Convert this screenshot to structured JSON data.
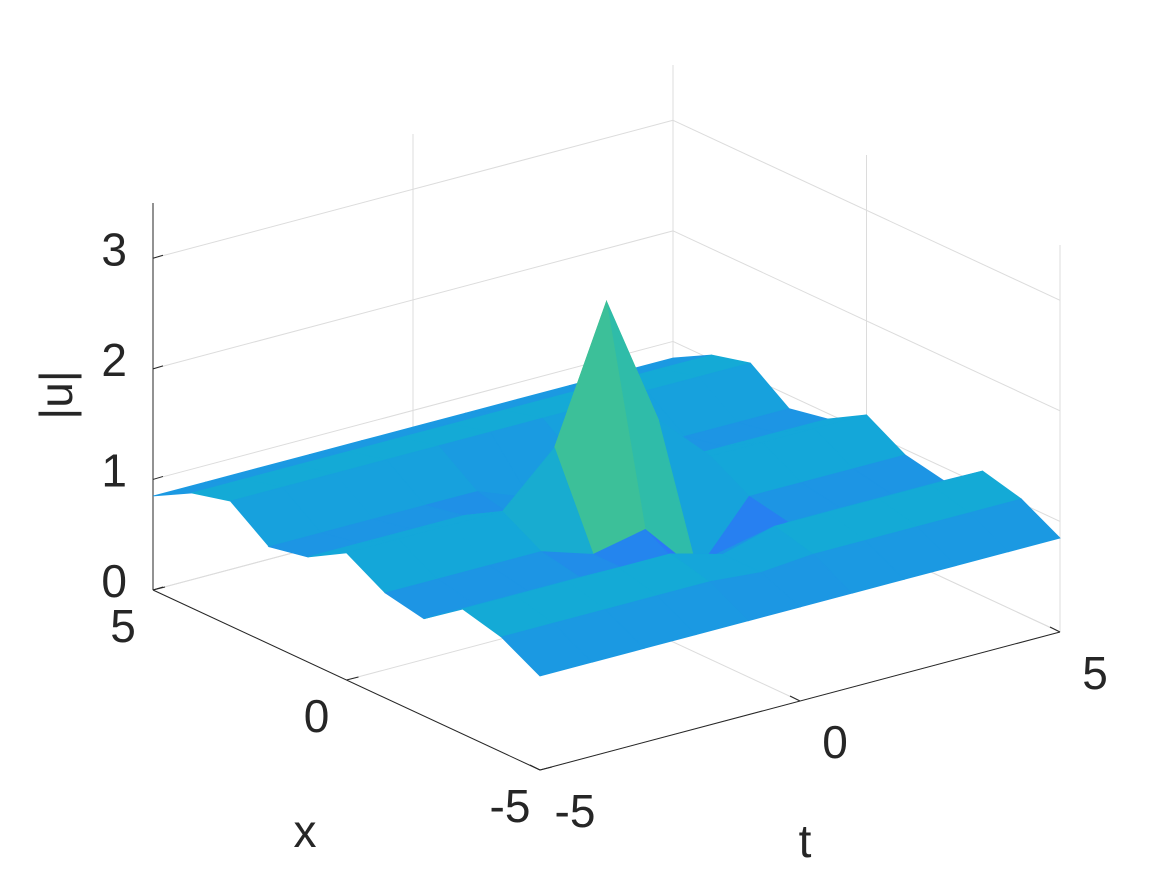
{
  "chart_data": {
    "type": "surface3d",
    "xlabel": "t",
    "ylabel": "x",
    "zlabel": "|u|",
    "t": [
      -5,
      -4,
      -3,
      -2,
      -1,
      0,
      1,
      2,
      3,
      4,
      5
    ],
    "x": [
      -5,
      -4,
      -3,
      -2,
      -1,
      0,
      1,
      2,
      3,
      4,
      5
    ],
    "z": [
      [
        0.85,
        0.85,
        0.85,
        0.85,
        0.85,
        0.85,
        0.85,
        0.85,
        0.85,
        0.85,
        0.85
      ],
      [
        1.04,
        1.04,
        1.04,
        1.04,
        1.04,
        1.0,
        1.04,
        1.04,
        1.04,
        1.04,
        1.04
      ],
      [
        1.13,
        1.13,
        1.13,
        1.13,
        1.13,
        1.0,
        1.13,
        1.13,
        1.13,
        1.13,
        1.13
      ],
      [
        0.88,
        0.88,
        0.88,
        0.88,
        0.8,
        0.7,
        0.8,
        0.88,
        0.88,
        0.88,
        0.88
      ],
      [
        0.95,
        0.95,
        0.95,
        0.95,
        0.8,
        0.9,
        0.4,
        0.95,
        0.95,
        0.95,
        0.95
      ],
      [
        1.15,
        1.15,
        1.15,
        1.15,
        1.6,
        2.8,
        1.6,
        1.15,
        1.15,
        1.15,
        1.15
      ],
      [
        0.95,
        0.95,
        0.95,
        0.95,
        0.8,
        1.3,
        0.8,
        0.95,
        0.95,
        0.95,
        0.95
      ],
      [
        0.88,
        0.88,
        0.88,
        0.88,
        0.88,
        0.7,
        0.88,
        0.88,
        0.88,
        0.88,
        0.88
      ],
      [
        1.13,
        1.13,
        1.13,
        1.13,
        1.13,
        1.13,
        1.13,
        1.13,
        1.13,
        1.13,
        1.13
      ],
      [
        1.04,
        1.04,
        1.04,
        1.04,
        1.04,
        1.04,
        1.04,
        1.04,
        1.04,
        1.04,
        1.04
      ],
      [
        0.85,
        0.85,
        0.85,
        0.85,
        0.85,
        0.85,
        0.85,
        0.85,
        0.85,
        0.85,
        0.85
      ]
    ],
    "tlim": [
      -5,
      5
    ],
    "xlim": [
      -5,
      5
    ],
    "zlim": [
      0,
      3.5
    ],
    "tticks": [
      -5,
      0,
      5
    ],
    "xticks": [
      -5,
      0,
      5
    ],
    "zticks": [
      0,
      1,
      2,
      3
    ],
    "clim": [
      0.2,
      2.8
    ],
    "colormap": [
      "#3e26a8",
      "#2f6ffb",
      "#13a9d8",
      "#35c09f",
      "#b5c437",
      "#fbbe36",
      "#f9fb0e"
    ],
    "grid": true
  }
}
